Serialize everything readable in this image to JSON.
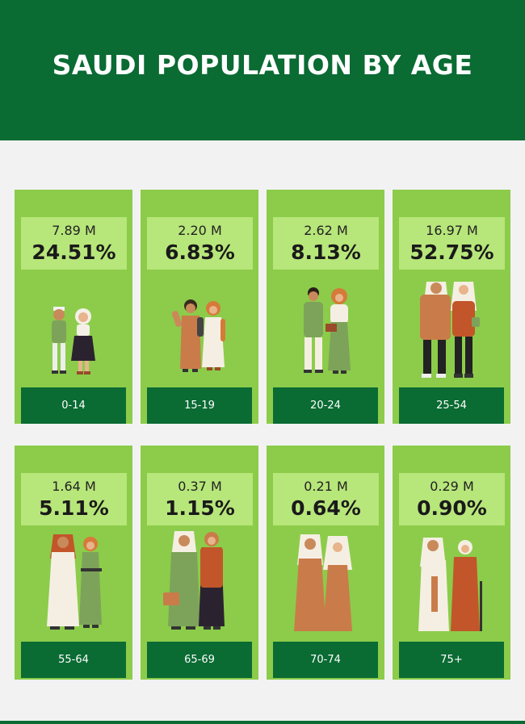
{
  "title": "SAUDI POPULATION BY AGE",
  "colors": {
    "dark_green": "#0a6b33",
    "card_green": "#8ccc4a",
    "stat_green": "#b7e67a",
    "background": "#f2f2f2"
  },
  "groups": [
    {
      "age": "0-14",
      "count": "7.89 M",
      "percent": "24.51%"
    },
    {
      "age": "15-19",
      "count": "2.20 M",
      "percent": "6.83%"
    },
    {
      "age": "20-24",
      "count": "2.62 M",
      "percent": "8.13%"
    },
    {
      "age": "25-54",
      "count": "16.97 M",
      "percent": "52.75%"
    },
    {
      "age": "55-64",
      "count": "1.64 M",
      "percent": "5.11%"
    },
    {
      "age": "65-69",
      "count": "0.37 M",
      "percent": "1.15%"
    },
    {
      "age": "70-74",
      "count": "0.21 M",
      "percent": "0.64%"
    },
    {
      "age": "75+",
      "count": "0.29 M",
      "percent": "0.90%"
    }
  ]
}
